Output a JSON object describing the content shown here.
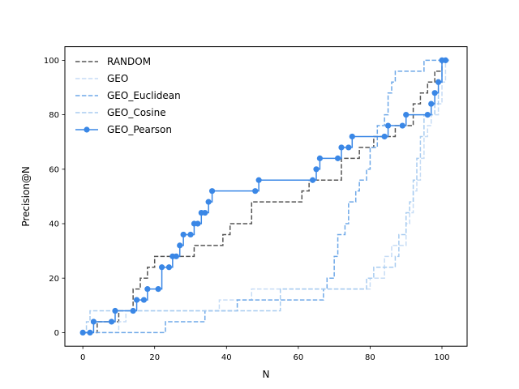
{
  "chart_data": {
    "type": "line",
    "title": "",
    "xlabel": "N",
    "ylabel": "Precision@N",
    "xlim": [
      -5,
      107
    ],
    "ylim": [
      -5,
      105
    ],
    "x_ticks": [
      0,
      20,
      40,
      60,
      80,
      100
    ],
    "y_ticks": [
      0,
      20,
      40,
      60,
      80,
      100
    ],
    "grid": false,
    "legend_position": "upper-left",
    "series": [
      {
        "name": "RANDOM",
        "color": "#555555",
        "style": "dashed",
        "marker": false,
        "step": true,
        "points": [
          [
            0,
            0
          ],
          [
            2,
            0
          ],
          [
            4,
            4
          ],
          [
            8,
            4
          ],
          [
            10,
            8
          ],
          [
            13,
            8
          ],
          [
            14,
            16
          ],
          [
            16,
            20
          ],
          [
            18,
            24
          ],
          [
            20,
            28
          ],
          [
            27,
            28
          ],
          [
            31,
            32
          ],
          [
            37,
            32
          ],
          [
            39,
            36
          ],
          [
            41,
            40
          ],
          [
            46,
            40
          ],
          [
            47,
            48
          ],
          [
            59,
            48
          ],
          [
            61,
            52
          ],
          [
            62,
            52
          ],
          [
            63,
            56
          ],
          [
            70,
            56
          ],
          [
            72,
            64
          ],
          [
            76,
            64
          ],
          [
            77,
            68
          ],
          [
            80,
            68
          ],
          [
            81,
            72
          ],
          [
            86,
            72
          ],
          [
            87,
            76
          ],
          [
            90,
            76
          ],
          [
            92,
            84
          ],
          [
            94,
            88
          ],
          [
            96,
            92
          ],
          [
            98,
            96
          ],
          [
            100,
            100
          ],
          [
            102,
            100
          ]
        ]
      },
      {
        "name": "GEO",
        "color": "#c6dcf5",
        "style": "dashed",
        "marker": false,
        "step": true,
        "points": [
          [
            0,
            0
          ],
          [
            9,
            0
          ],
          [
            10,
            4
          ],
          [
            12,
            8
          ],
          [
            37,
            8
          ],
          [
            38,
            12
          ],
          [
            46,
            12
          ],
          [
            47,
            16
          ],
          [
            60,
            16
          ],
          [
            61,
            16
          ],
          [
            79,
            16
          ],
          [
            80,
            20
          ],
          [
            82,
            20
          ],
          [
            84,
            28
          ],
          [
            86,
            32
          ],
          [
            88,
            32
          ],
          [
            90,
            40
          ],
          [
            91,
            44
          ],
          [
            92,
            52
          ],
          [
            93,
            56
          ],
          [
            94,
            64
          ],
          [
            95,
            72
          ],
          [
            96,
            76
          ],
          [
            97,
            80
          ],
          [
            98,
            80
          ],
          [
            99,
            84
          ],
          [
            100,
            92
          ],
          [
            101,
            100
          ],
          [
            102,
            100
          ]
        ]
      },
      {
        "name": "GEO_Euclidean",
        "color": "#6ea8e8",
        "style": "dashed",
        "marker": false,
        "step": true,
        "points": [
          [
            0,
            0
          ],
          [
            22,
            0
          ],
          [
            23,
            4
          ],
          [
            33,
            4
          ],
          [
            34,
            8
          ],
          [
            42,
            8
          ],
          [
            43,
            12
          ],
          [
            66,
            12
          ],
          [
            67,
            16
          ],
          [
            68,
            20
          ],
          [
            70,
            28
          ],
          [
            71,
            36
          ],
          [
            73,
            40
          ],
          [
            74,
            48
          ],
          [
            76,
            52
          ],
          [
            77,
            56
          ],
          [
            79,
            60
          ],
          [
            80,
            68
          ],
          [
            82,
            76
          ],
          [
            84,
            80
          ],
          [
            85,
            88
          ],
          [
            86,
            92
          ],
          [
            87,
            96
          ],
          [
            93,
            96
          ],
          [
            95,
            100
          ],
          [
            102,
            100
          ]
        ]
      },
      {
        "name": "GEO_Cosine",
        "color": "#a8ccf0",
        "style": "dashed",
        "marker": false,
        "step": true,
        "points": [
          [
            0,
            0
          ],
          [
            1,
            4
          ],
          [
            2,
            8
          ],
          [
            54,
            8
          ],
          [
            55,
            16
          ],
          [
            78,
            16
          ],
          [
            79,
            20
          ],
          [
            81,
            24
          ],
          [
            85,
            24
          ],
          [
            87,
            28
          ],
          [
            88,
            36
          ],
          [
            90,
            44
          ],
          [
            91,
            48
          ],
          [
            92,
            56
          ],
          [
            93,
            64
          ],
          [
            94,
            72
          ],
          [
            95,
            80
          ],
          [
            96,
            80
          ],
          [
            97,
            80
          ],
          [
            98,
            84
          ],
          [
            99,
            92
          ],
          [
            100,
            100
          ],
          [
            102,
            100
          ]
        ]
      },
      {
        "name": "GEO_Pearson",
        "color": "#3a87e6",
        "style": "solid",
        "marker": true,
        "step": true,
        "points": [
          [
            0,
            0
          ],
          [
            2,
            0
          ],
          [
            3,
            4
          ],
          [
            8,
            4
          ],
          [
            9,
            8
          ],
          [
            14,
            8
          ],
          [
            15,
            12
          ],
          [
            17,
            12
          ],
          [
            18,
            16
          ],
          [
            21,
            16
          ],
          [
            22,
            24
          ],
          [
            24,
            24
          ],
          [
            25,
            28
          ],
          [
            26,
            28
          ],
          [
            27,
            32
          ],
          [
            28,
            36
          ],
          [
            30,
            36
          ],
          [
            31,
            40
          ],
          [
            32,
            40
          ],
          [
            33,
            44
          ],
          [
            34,
            44
          ],
          [
            35,
            48
          ],
          [
            36,
            52
          ],
          [
            48,
            52
          ],
          [
            49,
            56
          ],
          [
            64,
            56
          ],
          [
            65,
            60
          ],
          [
            66,
            64
          ],
          [
            71,
            64
          ],
          [
            72,
            68
          ],
          [
            74,
            68
          ],
          [
            75,
            72
          ],
          [
            84,
            72
          ],
          [
            85,
            76
          ],
          [
            89,
            76
          ],
          [
            90,
            80
          ],
          [
            96,
            80
          ],
          [
            97,
            84
          ],
          [
            98,
            88
          ],
          [
            99,
            92
          ],
          [
            100,
            100
          ],
          [
            101,
            100
          ]
        ]
      }
    ]
  }
}
